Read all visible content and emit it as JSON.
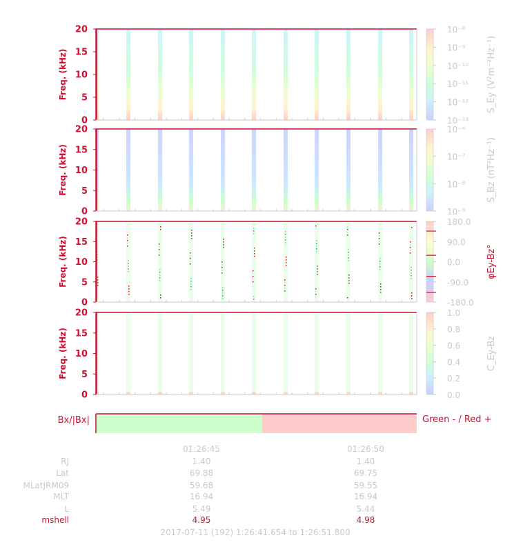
{
  "panels": [
    {
      "ylabel": "Freq. (kHz)",
      "ticks": [
        "0",
        "5",
        "10",
        "15",
        "20"
      ],
      "cb_label": "S_Ey (V²m⁻²Hz⁻¹)",
      "cb_ticks": [
        "10⁻⁸",
        "10⁻⁹",
        "10⁻¹⁰",
        "10⁻¹¹",
        "10⁻¹²",
        "10⁻¹³"
      ],
      "cb_type": "rainbow"
    },
    {
      "ylabel": "Freq. (kHz)",
      "ticks": [
        "0",
        "5",
        "10",
        "15",
        "20"
      ],
      "cb_label": "S_Bz (nT²Hz⁻¹)",
      "cb_ticks": [
        "10⁻⁶",
        "10⁻⁷",
        "10⁻⁸",
        "10⁻⁹"
      ],
      "cb_type": "rainbow"
    },
    {
      "ylabel": "Freq. (kHz)",
      "ticks": [
        "0",
        "5",
        "10",
        "15",
        "20"
      ],
      "cb_label": "φEy-Bz°",
      "cb_ticks": [
        "180.0",
        "90.0",
        "0.0",
        "-90.0",
        "-180.0"
      ],
      "cb_type": "phase"
    },
    {
      "ylabel": "Freq. (kHz)",
      "ticks": [
        "0",
        "5",
        "10",
        "15",
        "20"
      ],
      "cb_label": "C_Ey-Bz",
      "cb_ticks": [
        "1.0",
        "0.8",
        "0.6",
        "0.4",
        "0.2",
        "0.0"
      ],
      "cb_type": "rainbow"
    }
  ],
  "bx_panel": {
    "label": "Bx/|Bx|",
    "legend": "Green - / Red +",
    "green_color": "#ccffcc",
    "red_color": "#ffcccc"
  },
  "time_ticks": [
    "01:26:45",
    "01:26:50"
  ],
  "ephemeris": {
    "labels": [
      "RJ",
      "Lat",
      "MLatJRM09",
      "MLT",
      "L",
      "mshell"
    ],
    "col1": [
      "1.40",
      "69.88",
      "59.68",
      "16.94",
      "5.49",
      "4.95"
    ],
    "col2": [
      "1.40",
      "69.75",
      "59.55",
      "16.94",
      "5.44",
      "4.98"
    ]
  },
  "footer": "2017-07-11 (192) 1:26:41.654 to 1:26:51.800",
  "colors": {
    "axis": "#cc1133",
    "muted": "#c9c9c9",
    "background": "#ffffff"
  },
  "chart_data": {
    "type": "heatmap",
    "title": "",
    "xlabel": "",
    "ylabel": "Freq. (kHz)",
    "ylim": [
      0,
      20
    ],
    "x_time_range": [
      "1:26:41.654",
      "1:26:51.800"
    ],
    "burst_count": 11,
    "panels": [
      "S_Ey",
      "S_Bz",
      "phase Ey-Bz",
      "coherence Ey-Bz"
    ]
  }
}
